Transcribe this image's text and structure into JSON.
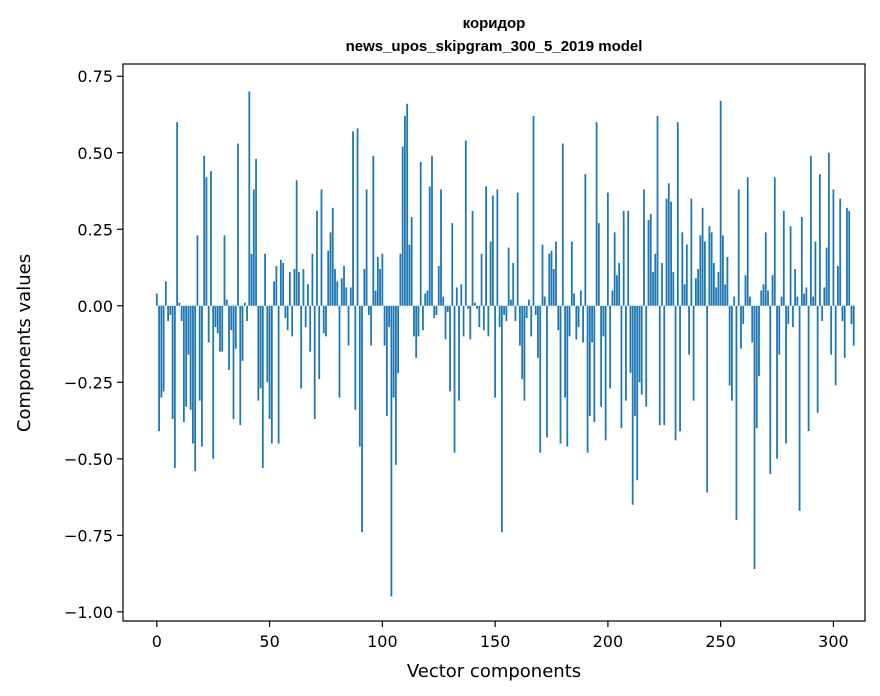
{
  "chart_data": {
    "type": "bar",
    "title_line1": "коридор",
    "title_line2": "news_upos_skipgram_300_5_2019 model",
    "xlabel": "Vector components",
    "ylabel": "Components values",
    "xlim": [
      -15,
      314
    ],
    "ylim": [
      -1.03,
      0.79
    ],
    "xticks": [
      0,
      50,
      100,
      150,
      200,
      250,
      300
    ],
    "xtick_labels": [
      "0",
      "50",
      "100",
      "150",
      "200",
      "250",
      "300"
    ],
    "yticks": [
      0.75,
      0.5,
      0.25,
      0.0,
      -0.25,
      -0.5,
      -0.75,
      -1.0
    ],
    "ytick_labels": [
      "0.75",
      "0.50",
      "0.25",
      "0.00",
      "−0.25",
      "−0.50",
      "−0.75",
      "−1.00"
    ],
    "bar_color": "#1f77b4",
    "grid": false,
    "x_start": 0,
    "values": [
      0.04,
      -0.41,
      -0.3,
      -0.28,
      0.08,
      -0.05,
      -0.03,
      -0.37,
      -0.53,
      0.6,
      0.01,
      -0.05,
      -0.38,
      -0.33,
      -0.16,
      -0.34,
      -0.45,
      -0.54,
      0.23,
      -0.31,
      -0.46,
      0.49,
      0.42,
      -0.12,
      0.44,
      -0.5,
      -0.07,
      -0.09,
      -0.15,
      -0.15,
      0.23,
      0.02,
      -0.21,
      -0.08,
      -0.37,
      -0.14,
      0.53,
      -0.39,
      -0.18,
      0.01,
      -0.05,
      0.7,
      0.17,
      0.38,
      0.48,
      -0.31,
      -0.27,
      -0.53,
      0.17,
      -0.25,
      -0.37,
      -0.45,
      0.08,
      0.13,
      -0.45,
      0.15,
      0.14,
      -0.04,
      -0.08,
      0.11,
      -0.1,
      0.12,
      0.41,
      0.11,
      -0.27,
      0.12,
      -0.07,
      0.07,
      -0.15,
      0.17,
      -0.37,
      0.31,
      -0.24,
      0.38,
      -0.09,
      -0.1,
      0.18,
      0.24,
      0.32,
      0.12,
      0.08,
      -0.3,
      0.09,
      0.13,
      0.06,
      -0.13,
      0.06,
      0.57,
      -0.34,
      0.58,
      -0.46,
      -0.74,
      0.12,
      0.38,
      -0.03,
      -0.13,
      0.49,
      0.05,
      0.16,
      0.12,
      0.17,
      -0.13,
      -0.36,
      -0.07,
      -0.95,
      -0.3,
      -0.52,
      -0.22,
      0.17,
      0.52,
      0.62,
      0.66,
      0.2,
      0.29,
      -0.1,
      -0.17,
      -0.1,
      0.47,
      -0.08,
      0.04,
      0.05,
      0.39,
      0.49,
      -0.04,
      -0.03,
      0.13,
      0.38,
      0.03,
      -0.11,
      -0.02,
      -0.28,
      0.27,
      -0.48,
      0.06,
      -0.31,
      0.07,
      -0.1,
      0.54,
      -0.01,
      -0.11,
      0.31,
      0.01,
      -0.01,
      -0.07,
      0.17,
      -0.08,
      0.39,
      -0.1,
      0.21,
      0.36,
      -0.3,
      0.38,
      -0.07,
      -0.74,
      -0.03,
      -0.05,
      0.19,
      0.02,
      0.14,
      -0.05,
      0.37,
      -0.13,
      -0.24,
      -0.31,
      -0.04,
      0.02,
      -0.1,
      0.62,
      -0.03,
      -0.17,
      -0.48,
      0.2,
      0.03,
      -0.43,
      0.17,
      0.18,
      0.12,
      0.21,
      -0.08,
      -0.45,
      0.53,
      -0.3,
      -0.46,
      -0.1,
      0.21,
      0.04,
      -0.11,
      -0.07,
      0.05,
      -0.12,
      0.43,
      -0.48,
      -0.36,
      -0.12,
      -0.38,
      0.6,
      0.27,
      -0.33,
      -0.1,
      -0.44,
      0.37,
      -0.27,
      0.05,
      0.24,
      0.1,
      0.14,
      -0.4,
      0.31,
      -0.31,
      0.31,
      -0.22,
      -0.65,
      -0.36,
      -0.57,
      -0.25,
      -0.29,
      0.38,
      -0.33,
      0.28,
      0.3,
      0.11,
      0.17,
      0.62,
      -0.39,
      0.14,
      -0.39,
      0.35,
      0.4,
      0.34,
      0.11,
      -0.44,
      0.6,
      -0.41,
      0.24,
      0.07,
      0.2,
      -0.16,
      0.35,
      -0.31,
      0.09,
      0.12,
      0.23,
      0.32,
      0.21,
      -0.61,
      0.26,
      0.24,
      0.14,
      0.06,
      0.11,
      0.67,
      0.23,
      0.07,
      0.16,
      -0.26,
      -0.31,
      0.03,
      -0.7,
      0.38,
      -0.14,
      -0.06,
      0.1,
      0.42,
      0.03,
      -0.12,
      -0.86,
      -0.4,
      -0.23,
      0.05,
      0.07,
      0.24,
      0.05,
      -0.55,
      0.1,
      0.42,
      -0.5,
      -0.16,
      0.03,
      0.31,
      -0.45,
      -0.06,
      0.26,
      -0.07,
      0.12,
      0.03,
      -0.67,
      0.29,
      0.04,
      0.06,
      -0.41,
      0.49,
      0.03,
      0.21,
      -0.35,
      0.43,
      -0.05,
      0.06,
      0.19,
      0.5,
      -0.16,
      0.38,
      -0.26,
      0.13,
      0.35,
      -0.05,
      -0.17,
      0.32,
      0.31,
      -0.06,
      -0.13
    ]
  }
}
